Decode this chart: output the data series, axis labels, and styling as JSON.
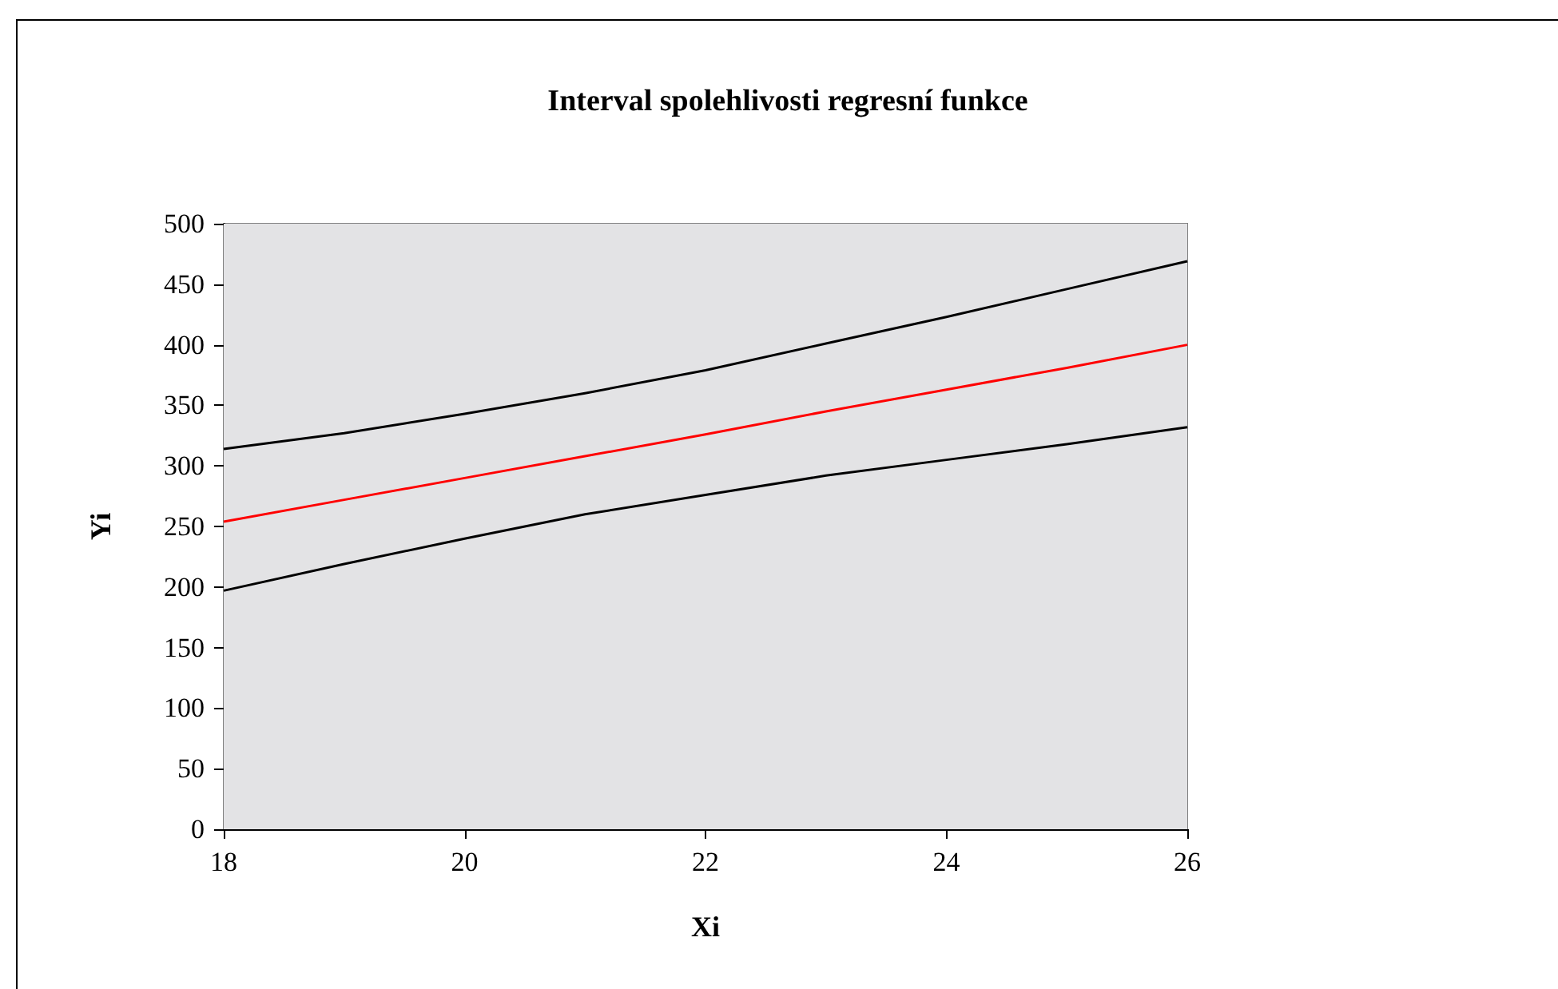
{
  "chart_data": {
    "type": "line",
    "title": "Interval spolehlivosti regresní funkce",
    "xlabel": "Xi",
    "ylabel": "Yi",
    "x": [
      18,
      19,
      20,
      21,
      22,
      23,
      24,
      25,
      26
    ],
    "series": [
      {
        "color": "#000000",
        "values": [
          314,
          327,
          343,
          360,
          379,
          401,
          423,
          446,
          469
        ]
      },
      {
        "color": "#ff0000",
        "values": [
          254,
          272,
          290,
          308,
          326,
          345,
          363,
          381,
          400
        ]
      },
      {
        "color": "#000000",
        "values": [
          197,
          219,
          240,
          260,
          276,
          292,
          305,
          318,
          332
        ]
      }
    ],
    "xlim": [
      18,
      26
    ],
    "xticks": [
      18,
      20,
      22,
      24,
      26
    ],
    "ylim": [
      0,
      500
    ],
    "yticks": [
      0,
      50,
      100,
      150,
      200,
      250,
      300,
      350,
      400,
      450,
      500
    ],
    "grid": false,
    "marker": "none",
    "line_style": "solid"
  }
}
